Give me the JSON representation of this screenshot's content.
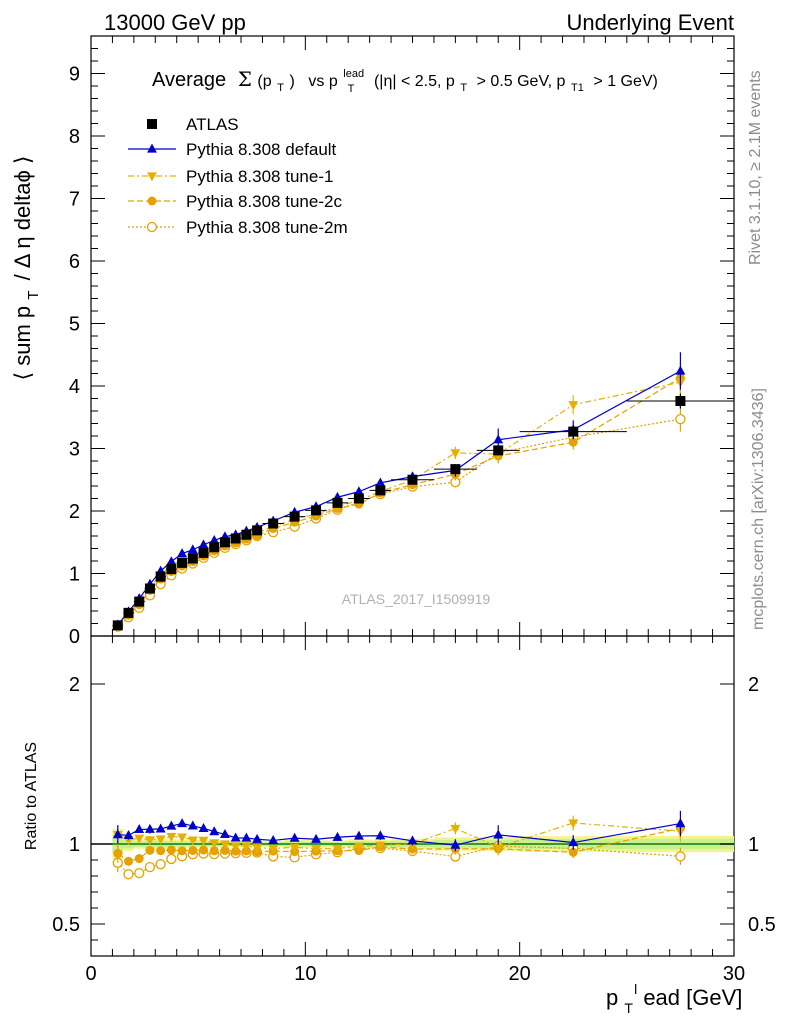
{
  "header": {
    "left": "13000 GeV pp",
    "right": "Underlying Event"
  },
  "title": {
    "average": "Average",
    "sigma": "Σ",
    "ppt": "(p",
    "ppt_sub": "T",
    "ppt_close": ")",
    "vs": "vs p",
    "lead_sup": "lead",
    "lead_sub": "T",
    "cuts": "(|η| < 2.5, p",
    "cuts_sub1": "T",
    "cuts2": "> 0.5 GeV, p",
    "cuts_sub2": "T1",
    "cuts3": "> 1 GeV)"
  },
  "ylabel_main": {
    "a": "⟨ sum p",
    "sub": "T",
    "b": "/ Δ η deltaϕ ⟩"
  },
  "ylabel_ratio": "Ratio to ATLAS",
  "xlabel": {
    "p": "p",
    "sub": "T",
    "sup": "l",
    "rest": "ead [GeV]"
  },
  "side_text": {
    "rivet": "Rivet 3.1.10, ≥ 2.1M events",
    "mcplots": "mcplots.cern.ch [arXiv:1306.3436]"
  },
  "watermark": "ATLAS_2017_I1509919",
  "legend": [
    {
      "label": "ATLAS"
    },
    {
      "label": "Pythia 8.308 default"
    },
    {
      "label": "Pythia 8.308 tune-1"
    },
    {
      "label": "Pythia 8.308 tune-2c"
    },
    {
      "label": "Pythia 8.308 tune-2m"
    }
  ],
  "chart_data": {
    "type": "scatter",
    "xlim": [
      0,
      30
    ],
    "ylim_main": [
      0,
      9.6
    ],
    "ylim_ratio": [
      0.3,
      2.3
    ],
    "x_ticks": [
      "0",
      "10",
      "20",
      "30"
    ],
    "y_ticks_main": [
      "0",
      "1",
      "2",
      "3",
      "4",
      "5",
      "6",
      "7",
      "8",
      "9"
    ],
    "y_ticks_ratio": [
      "0.5",
      "1",
      "2"
    ],
    "x": [
      1.25,
      1.75,
      2.25,
      2.75,
      3.25,
      3.75,
      4.25,
      4.75,
      5.25,
      5.75,
      6.25,
      6.75,
      7.25,
      7.75,
      8.5,
      9.5,
      10.5,
      11.5,
      12.5,
      13.5,
      15,
      17,
      19,
      22.5,
      27.5
    ],
    "x_err": [
      0.25,
      0.25,
      0.25,
      0.25,
      0.25,
      0.25,
      0.25,
      0.25,
      0.25,
      0.25,
      0.25,
      0.25,
      0.25,
      0.25,
      0.5,
      0.5,
      0.5,
      0.5,
      0.5,
      0.5,
      1,
      1,
      1,
      2.5,
      2.5
    ],
    "series": [
      {
        "name": "ATLAS",
        "color": "#000000",
        "marker": "square",
        "values": [
          0.17,
          0.37,
          0.55,
          0.76,
          0.95,
          1.07,
          1.17,
          1.24,
          1.33,
          1.42,
          1.5,
          1.56,
          1.62,
          1.69,
          1.8,
          1.91,
          2.01,
          2.13,
          2.2,
          2.33,
          2.5,
          2.67,
          2.97,
          3.27,
          3.76
        ],
        "yerr": [
          0.01,
          0.01,
          0.01,
          0.02,
          0.02,
          0.02,
          0.02,
          0.02,
          0.02,
          0.02,
          0.02,
          0.02,
          0.02,
          0.02,
          0.02,
          0.03,
          0.03,
          0.03,
          0.04,
          0.04,
          0.05,
          0.07,
          0.08,
          0.1,
          0.12
        ]
      },
      {
        "name": "Pythia 8.308 default",
        "color": "#0000cc",
        "marker": "triangle-up",
        "line": "solid",
        "values": [
          0.18,
          0.39,
          0.6,
          0.83,
          1.04,
          1.19,
          1.32,
          1.38,
          1.46,
          1.53,
          1.59,
          1.62,
          1.68,
          1.74,
          1.84,
          1.98,
          2.07,
          2.22,
          2.31,
          2.45,
          2.55,
          2.65,
          3.14,
          3.3,
          4.24
        ],
        "yerr": [
          0.01,
          0.01,
          0.01,
          0.02,
          0.02,
          0.02,
          0.02,
          0.02,
          0.02,
          0.02,
          0.03,
          0.03,
          0.03,
          0.03,
          0.03,
          0.04,
          0.04,
          0.05,
          0.05,
          0.06,
          0.07,
          0.1,
          0.18,
          0.15,
          0.3
        ]
      },
      {
        "name": "Pythia 8.308 tune-1",
        "color": "#e6b000",
        "marker": "triangle-down",
        "line": "dashdot",
        "values": [
          0.18,
          0.38,
          0.57,
          0.78,
          0.98,
          1.12,
          1.22,
          1.27,
          1.36,
          1.43,
          1.5,
          1.54,
          1.6,
          1.65,
          1.75,
          1.87,
          1.95,
          2.07,
          2.17,
          2.31,
          2.5,
          2.93,
          2.91,
          3.7,
          4.06
        ],
        "yerr": [
          0.01,
          0.01,
          0.01,
          0.02,
          0.02,
          0.02,
          0.02,
          0.02,
          0.02,
          0.02,
          0.03,
          0.03,
          0.03,
          0.03,
          0.03,
          0.04,
          0.04,
          0.05,
          0.05,
          0.06,
          0.07,
          0.1,
          0.12,
          0.15,
          0.25
        ]
      },
      {
        "name": "Pythia 8.308 tune-2c",
        "color": "#e6a000",
        "marker": "circle",
        "line": "dashed",
        "values": [
          0.16,
          0.33,
          0.5,
          0.73,
          0.91,
          1.03,
          1.12,
          1.19,
          1.28,
          1.36,
          1.44,
          1.49,
          1.55,
          1.61,
          1.72,
          1.82,
          1.92,
          2.04,
          2.11,
          2.29,
          2.42,
          2.59,
          2.88,
          3.1,
          4.13
        ],
        "yerr": [
          0.01,
          0.01,
          0.01,
          0.02,
          0.02,
          0.02,
          0.02,
          0.02,
          0.02,
          0.02,
          0.03,
          0.03,
          0.03,
          0.03,
          0.03,
          0.04,
          0.04,
          0.05,
          0.05,
          0.06,
          0.07,
          0.1,
          0.12,
          0.12,
          0.25
        ]
      },
      {
        "name": "Pythia 8.308 tune-2m",
        "color": "#e6a000",
        "marker": "circle-open",
        "line": "dotted",
        "values": [
          0.15,
          0.3,
          0.45,
          0.65,
          0.83,
          0.97,
          1.08,
          1.16,
          1.25,
          1.33,
          1.41,
          1.47,
          1.53,
          1.6,
          1.66,
          1.75,
          1.88,
          2.02,
          2.14,
          2.27,
          2.39,
          2.46,
          2.93,
          3.18,
          3.47
        ],
        "yerr": [
          0.01,
          0.01,
          0.01,
          0.02,
          0.02,
          0.02,
          0.02,
          0.02,
          0.02,
          0.02,
          0.03,
          0.03,
          0.03,
          0.03,
          0.03,
          0.04,
          0.04,
          0.05,
          0.05,
          0.06,
          0.07,
          0.08,
          0.12,
          0.12,
          0.2
        ]
      }
    ],
    "ratio_band_color": "#c8f08c",
    "ratio_line_color": "#22aa22"
  }
}
